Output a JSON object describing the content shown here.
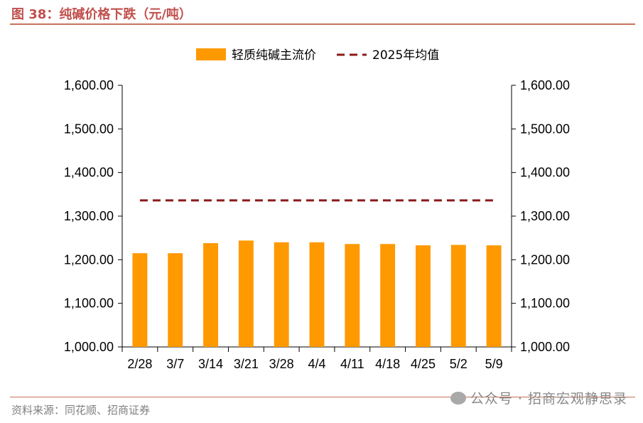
{
  "header": {
    "title": "图 38：纯碱价格下跌（元/吨）"
  },
  "footer": {
    "source": "资料来源：同花顺、招商证券",
    "watermark": "公众号 · 招商宏观静思录"
  },
  "colors": {
    "bar": "#FF9900",
    "avg_line": "#8B1A1A",
    "title": "#C0504D",
    "rule": "#C8735A"
  },
  "chart_data": {
    "type": "bar",
    "title": "",
    "xlabel": "",
    "ylabel": "",
    "categories": [
      "2/28",
      "3/7",
      "3/14",
      "3/21",
      "3/28",
      "4/4",
      "4/11",
      "4/18",
      "4/25",
      "5/2",
      "5/9"
    ],
    "series": [
      {
        "name": "轻质纯碱主流价",
        "type": "bar",
        "values": [
          1215,
          1215,
          1238,
          1244,
          1240,
          1240,
          1236,
          1236,
          1233,
          1234,
          1233
        ]
      },
      {
        "name": "2025年均值",
        "type": "line",
        "style": "dashed",
        "values": [
          1336,
          1336,
          1336,
          1336,
          1336,
          1336,
          1336,
          1336,
          1336,
          1336,
          1336
        ]
      }
    ],
    "ylim": [
      1000,
      1600
    ],
    "yticks": [
      "1,000.00",
      "1,100.00",
      "1,200.00",
      "1,300.00",
      "1,400.00",
      "1,500.00",
      "1,600.00"
    ],
    "ytick_values": [
      1000,
      1100,
      1200,
      1300,
      1400,
      1500,
      1600
    ],
    "secondary_y": true,
    "grid": false,
    "legend_position": "top-center"
  }
}
